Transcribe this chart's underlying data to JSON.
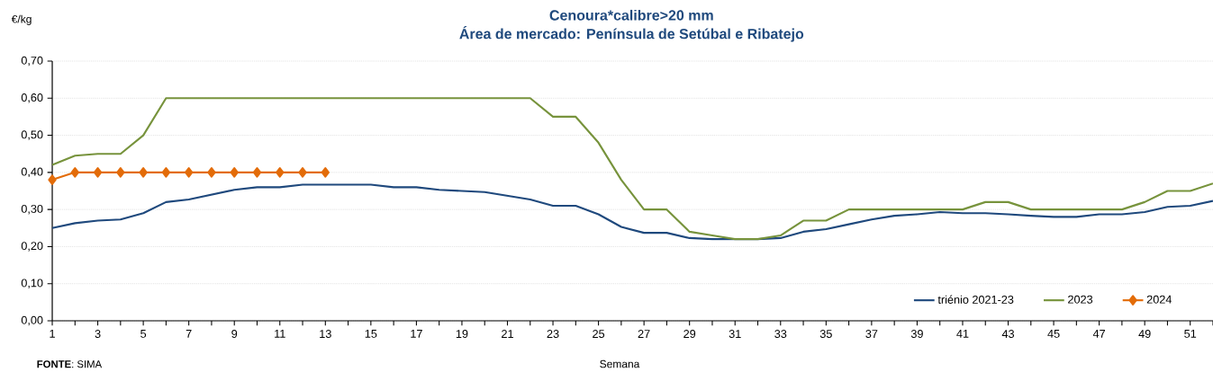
{
  "chart_data": {
    "type": "line",
    "title": "Cenoura*calibre>20 mm\nÁrea de mercado: Península de Setúbal e Ribatejo",
    "ylabel": "€/kg",
    "xlabel": "Semana",
    "annotations": [
      "**FONTE**: SIMA"
    ],
    "x": [
      1,
      2,
      3,
      4,
      5,
      6,
      7,
      8,
      9,
      10,
      11,
      12,
      13,
      14,
      15,
      16,
      17,
      18,
      19,
      20,
      21,
      22,
      23,
      24,
      25,
      26,
      27,
      28,
      29,
      30,
      31,
      32,
      33,
      34,
      35,
      36,
      37,
      38,
      39,
      40,
      41,
      42,
      43,
      44,
      45,
      46,
      47,
      48,
      49,
      50,
      51,
      52
    ],
    "series": [
      {
        "name": "triénio 2021-23",
        "color": "#1f497d",
        "values": [
          0.25,
          0.263,
          0.27,
          0.273,
          0.29,
          0.32,
          0.327,
          0.34,
          0.353,
          0.36,
          0.36,
          0.367,
          0.367,
          0.367,
          0.367,
          0.36,
          0.36,
          0.353,
          0.35,
          0.347,
          0.337,
          0.327,
          0.31,
          0.31,
          0.287,
          0.253,
          0.237,
          0.237,
          0.223,
          0.22,
          0.22,
          0.22,
          0.223,
          0.24,
          0.247,
          0.26,
          0.273,
          0.283,
          0.287,
          0.293,
          0.29,
          0.29,
          0.287,
          0.283,
          0.28,
          0.28,
          0.287,
          0.287,
          0.293,
          0.307,
          0.31,
          0.323
        ]
      },
      {
        "name": "2023",
        "color": "#77933c",
        "values": [
          0.42,
          0.445,
          0.45,
          0.45,
          0.5,
          0.6,
          0.6,
          0.6,
          0.6,
          0.6,
          0.6,
          0.6,
          0.6,
          0.6,
          0.6,
          0.6,
          0.6,
          0.6,
          0.6,
          0.6,
          0.6,
          0.6,
          0.55,
          0.55,
          0.48,
          0.38,
          0.3,
          0.3,
          0.24,
          0.23,
          0.22,
          0.22,
          0.23,
          0.27,
          0.27,
          0.3,
          0.3,
          0.3,
          0.3,
          0.3,
          0.3,
          0.32,
          0.32,
          0.3,
          0.3,
          0.3,
          0.3,
          0.3,
          0.32,
          0.35,
          0.35,
          0.37
        ]
      },
      {
        "name": "2024",
        "color": "#e36c09",
        "marker": "diamond",
        "values": [
          0.38,
          0.4,
          0.4,
          0.4,
          0.4,
          0.4,
          0.4,
          0.4,
          0.4,
          0.4,
          0.4,
          0.4,
          0.4,
          null,
          null,
          null,
          null,
          null,
          null,
          null,
          null,
          null,
          null,
          null,
          null,
          null,
          null,
          null,
          null,
          null,
          null,
          null,
          null,
          null,
          null,
          null,
          null,
          null,
          null,
          null,
          null,
          null,
          null,
          null,
          null,
          null,
          null,
          null,
          null,
          null,
          null,
          null
        ]
      }
    ],
    "xlim": [
      1,
      52
    ],
    "xticks": [
      1,
      {
        "value": 2,
        "label": null
      },
      3,
      {
        "value": 4,
        "label": null
      },
      5,
      {
        "value": 6,
        "label": null
      },
      7,
      {
        "value": 8,
        "label": null
      },
      9,
      {
        "value": 10,
        "label": null
      },
      11,
      {
        "value": 12,
        "label": null
      },
      13,
      {
        "value": 14,
        "label": null
      },
      15,
      {
        "value": 16,
        "label": null
      },
      17,
      {
        "value": 18,
        "label": null
      },
      19,
      {
        "value": 20,
        "label": null
      },
      21,
      {
        "value": 22,
        "label": null
      },
      23,
      {
        "value": 24,
        "label": null
      },
      25,
      {
        "value": 26,
        "label": null
      },
      27,
      {
        "value": 28,
        "label": null
      },
      29,
      {
        "value": 30,
        "label": null
      },
      31,
      {
        "value": 32,
        "label": null
      },
      33,
      {
        "value": 34,
        "label": null
      },
      35,
      {
        "value": 36,
        "label": null
      },
      37,
      {
        "value": 38,
        "label": null
      },
      39,
      {
        "value": 40,
        "label": null
      },
      41,
      {
        "value": 42,
        "label": null
      },
      43,
      {
        "value": 44,
        "label": null
      },
      45,
      {
        "value": 46,
        "label": null
      },
      47,
      {
        "value": 48,
        "label": null
      },
      49,
      {
        "value": 50,
        "label": null
      },
      51,
      {
        "value": 52,
        "label": null
      }
    ],
    "ylim": [
      0,
      0.7
    ],
    "yticks": [
      {
        "value": 0,
        "label": "0,00"
      },
      {
        "value": 0.1,
        "label": "0,10"
      },
      {
        "value": 0.2,
        "label": "0,20"
      },
      {
        "value": 0.3,
        "label": "0,30"
      },
      {
        "value": 0.4,
        "label": "0,40"
      },
      {
        "value": 0.5,
        "label": "0,50"
      },
      {
        "value": 0.6,
        "label": "0,60"
      },
      {
        "value": 0.7,
        "label": "0,70"
      }
    ],
    "grid": "y",
    "legend": "bottom right"
  }
}
